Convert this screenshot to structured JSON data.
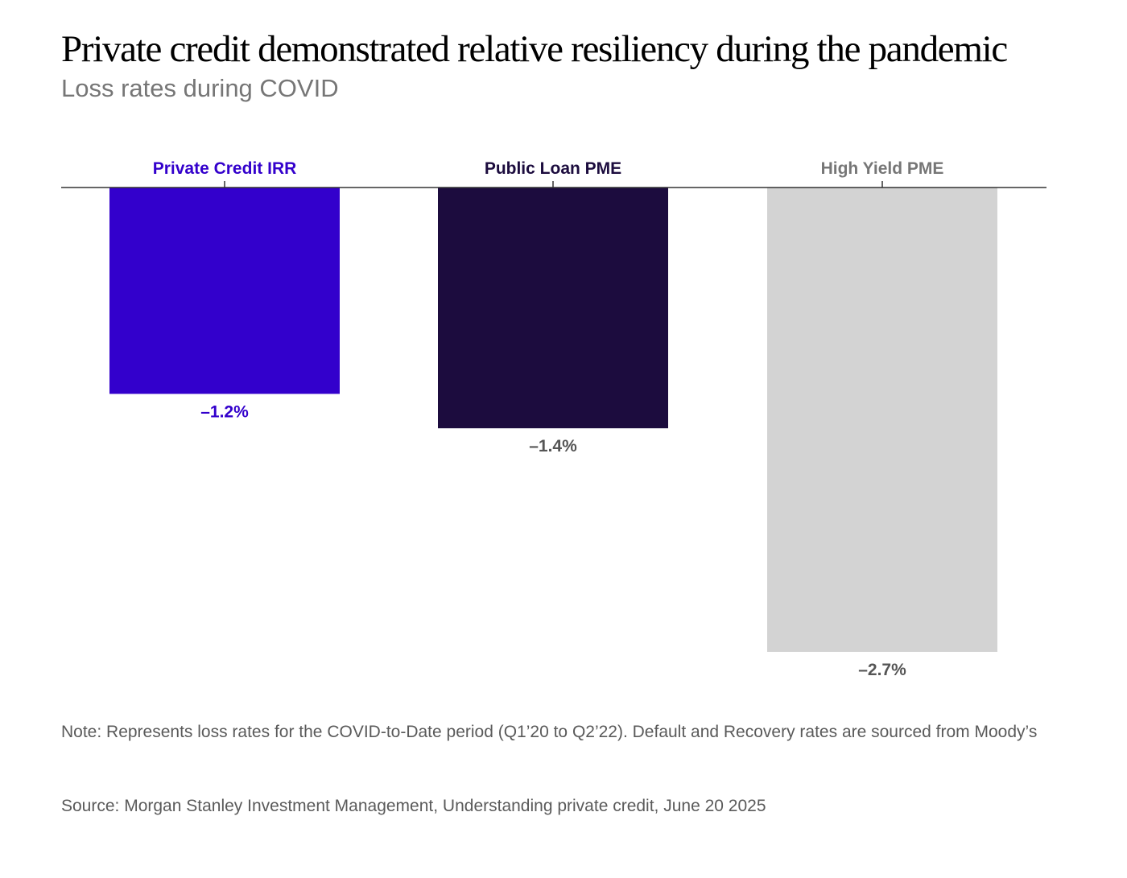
{
  "header": {
    "title": "Private credit demonstrated relative resiliency during the pandemic",
    "subtitle": "Loss rates during COVID"
  },
  "chart_data": {
    "type": "bar",
    "orientation": "vertical",
    "baseline": "top",
    "categories": [
      "Private Credit IRR",
      "Public Loan PME",
      "High Yield PME"
    ],
    "values": [
      -1.2,
      -1.4,
      -2.7
    ],
    "value_labels": [
      "–1.2%",
      "–1.4%",
      "–2.7%"
    ],
    "colors": [
      "#3300cc",
      "#1c0c3e",
      "#d3d3d3"
    ],
    "category_label_colors": [
      "#3300cc",
      "#1c0c3e",
      "#767676"
    ],
    "value_label_colors": [
      "#3300cc",
      "#555555",
      "#555555"
    ],
    "unit": "%",
    "ylim": [
      -2.7,
      0
    ],
    "grid": false,
    "legend": "none"
  },
  "footer": {
    "note": "Note: Represents loss rates for the COVID-to-Date period (Q1’20 to Q2’22). Default and Recovery rates are sourced from Moody’s",
    "source": "Source: Morgan Stanley Investment Management, Understanding private credit, June 20 2025"
  }
}
